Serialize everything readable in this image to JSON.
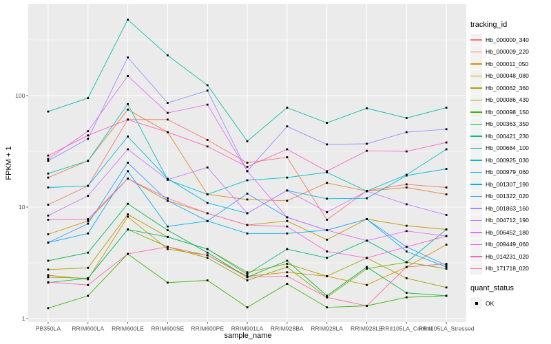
{
  "figure": {
    "background": "#ffffff",
    "panel_background": "#EBEBEB",
    "grid_color": "#FFFFFF",
    "tick_color": "#333333",
    "tick_label_color": "#4D4D4D",
    "point_color": "#000000",
    "legend_key_background": "#F2F2F2"
  },
  "axes": {
    "x_title": "sample_name",
    "y_title": "FPKM + 1",
    "y_tick_labels": [
      "1",
      "10",
      "100"
    ]
  },
  "legend": {
    "tracking_title": "tracking_id",
    "quant_title": "quant_status",
    "quant_items": [
      {
        "label": "OK",
        "marker": "black-square"
      }
    ]
  },
  "chart_data": {
    "type": "line",
    "title": "",
    "xlabel": "sample_name",
    "ylabel": "FPKM + 1",
    "y_scale": "log10",
    "y_ticks": [
      1,
      10,
      100
    ],
    "ylim": [
      1,
      630
    ],
    "grid": "on",
    "legend_position": "right",
    "point_marker": "black-square",
    "categories": [
      "PB350LA",
      "RRIM600LA",
      "RRIM600LE",
      "RRIM600SE",
      "RRIM600PE",
      "RRIM901LA",
      "RRIM928BA",
      "RRIM928LA",
      "RRIM928LE",
      "RRII105LA_Control",
      "RRII105LA_Stressed"
    ],
    "series": [
      {
        "name": "Hb_000000_340",
        "color": "#F8766D",
        "values": [
          10.5,
          15.5,
          61,
          61,
          40,
          25,
          28,
          7.7,
          14,
          16,
          15
        ]
      },
      {
        "name": "Hb_000009_220",
        "color": "#EA8331",
        "values": [
          18.4,
          26,
          75,
          47,
          13,
          11.7,
          11.4,
          16.5,
          13.9,
          15,
          13
        ]
      },
      {
        "name": "Hb_000011_050",
        "color": "#D89000",
        "values": [
          2.45,
          2.25,
          8.2,
          4.2,
          3.7,
          2.4,
          2.6,
          2.4,
          2.0,
          2.9,
          4.6
        ]
      },
      {
        "name": "Hb_000048_080",
        "color": "#C09B00",
        "values": [
          5.7,
          7.5,
          18,
          11.4,
          8.8,
          6.9,
          7.5,
          5.1,
          7.8,
          6.8,
          6.3
        ]
      },
      {
        "name": "Hb_000062_360",
        "color": "#A3A500",
        "values": [
          2.75,
          2.85,
          8.6,
          5.4,
          4.2,
          2.6,
          3.1,
          2.4,
          3.5,
          2.3,
          1.9
        ]
      },
      {
        "name": "Hb_000086_430",
        "color": "#7CAE00",
        "values": [
          2.35,
          2.3,
          6.3,
          4.4,
          3.5,
          2.2,
          2.9,
          1.55,
          2.8,
          3.2,
          2.8
        ]
      },
      {
        "name": "Hb_000098_150",
        "color": "#39B600",
        "values": [
          1.24,
          1.6,
          3.8,
          2.1,
          2.2,
          1.26,
          2.05,
          1.26,
          1.3,
          1.55,
          1.6
        ]
      },
      {
        "name": "Hb_000363_350",
        "color": "#00BB4E",
        "values": [
          3.3,
          3.9,
          10.7,
          6.2,
          3.9,
          2.35,
          3.3,
          1.6,
          2.9,
          1.7,
          1.6
        ]
      },
      {
        "name": "Hb_000421_230",
        "color": "#00BF7D",
        "values": [
          2.1,
          2.3,
          6.3,
          5.4,
          4.2,
          2.5,
          4.2,
          3.5,
          5.0,
          3.2,
          6.3
        ]
      },
      {
        "name": "Hb_000684_100",
        "color": "#00C1A3",
        "values": [
          72,
          95,
          480,
          230,
          124,
          39,
          78,
          57,
          77,
          63,
          78
        ]
      },
      {
        "name": "Hb_000925_030",
        "color": "#00BFC4",
        "values": [
          20,
          26,
          84,
          17.6,
          13,
          17.4,
          18.4,
          20.5,
          13.9,
          19.5,
          33
        ]
      },
      {
        "name": "Hb_000979_060",
        "color": "#00BAE0",
        "values": [
          15,
          15.5,
          43,
          18,
          10.9,
          8.8,
          14.1,
          11.9,
          12,
          19.2,
          22
        ]
      },
      {
        "name": "Hb_001307_190",
        "color": "#00B0F6",
        "values": [
          4.8,
          5.8,
          21,
          6.7,
          7.5,
          5.8,
          5.8,
          6.2,
          7.8,
          4.0,
          2.9
        ]
      },
      {
        "name": "Hb_001322_020",
        "color": "#35A2FF",
        "values": [
          4.8,
          7.1,
          25,
          11.4,
          7.5,
          13.2,
          8.1,
          6.2,
          7.8,
          4.4,
          3.0
        ]
      },
      {
        "name": "Hb_001863_160",
        "color": "#9590FF",
        "values": [
          26,
          41,
          220,
          86,
          111,
          21,
          53,
          36.5,
          37,
          47,
          50
        ]
      },
      {
        "name": "Hb_004712_190",
        "color": "#C77CFF",
        "values": [
          8.4,
          12.6,
          33,
          17.6,
          22.7,
          8.8,
          14.1,
          9.0,
          13.9,
          10.6,
          8.5
        ]
      },
      {
        "name": "Hb_006452_180",
        "color": "#E76BF3",
        "values": [
          27,
          48,
          150,
          70,
          83,
          21,
          8.1,
          6.2,
          5.0,
          6.1,
          5.5
        ]
      },
      {
        "name": "Hb_009449_060",
        "color": "#FA62DB",
        "values": [
          7.7,
          7.8,
          18,
          12,
          8.8,
          6.9,
          6.7,
          4.0,
          3.5,
          4.4,
          5.5
        ]
      },
      {
        "name": "Hb_014231_020",
        "color": "#FF62BC",
        "values": [
          29,
          44,
          61,
          47,
          35,
          23,
          33,
          21,
          32,
          31.6,
          38
        ]
      },
      {
        "name": "Hb_171718_020",
        "color": "#FF6A98",
        "values": [
          2.12,
          2.0,
          3.8,
          4.4,
          3.7,
          2.35,
          2.4,
          1.55,
          1.3,
          2.9,
          3.1
        ]
      }
    ]
  }
}
